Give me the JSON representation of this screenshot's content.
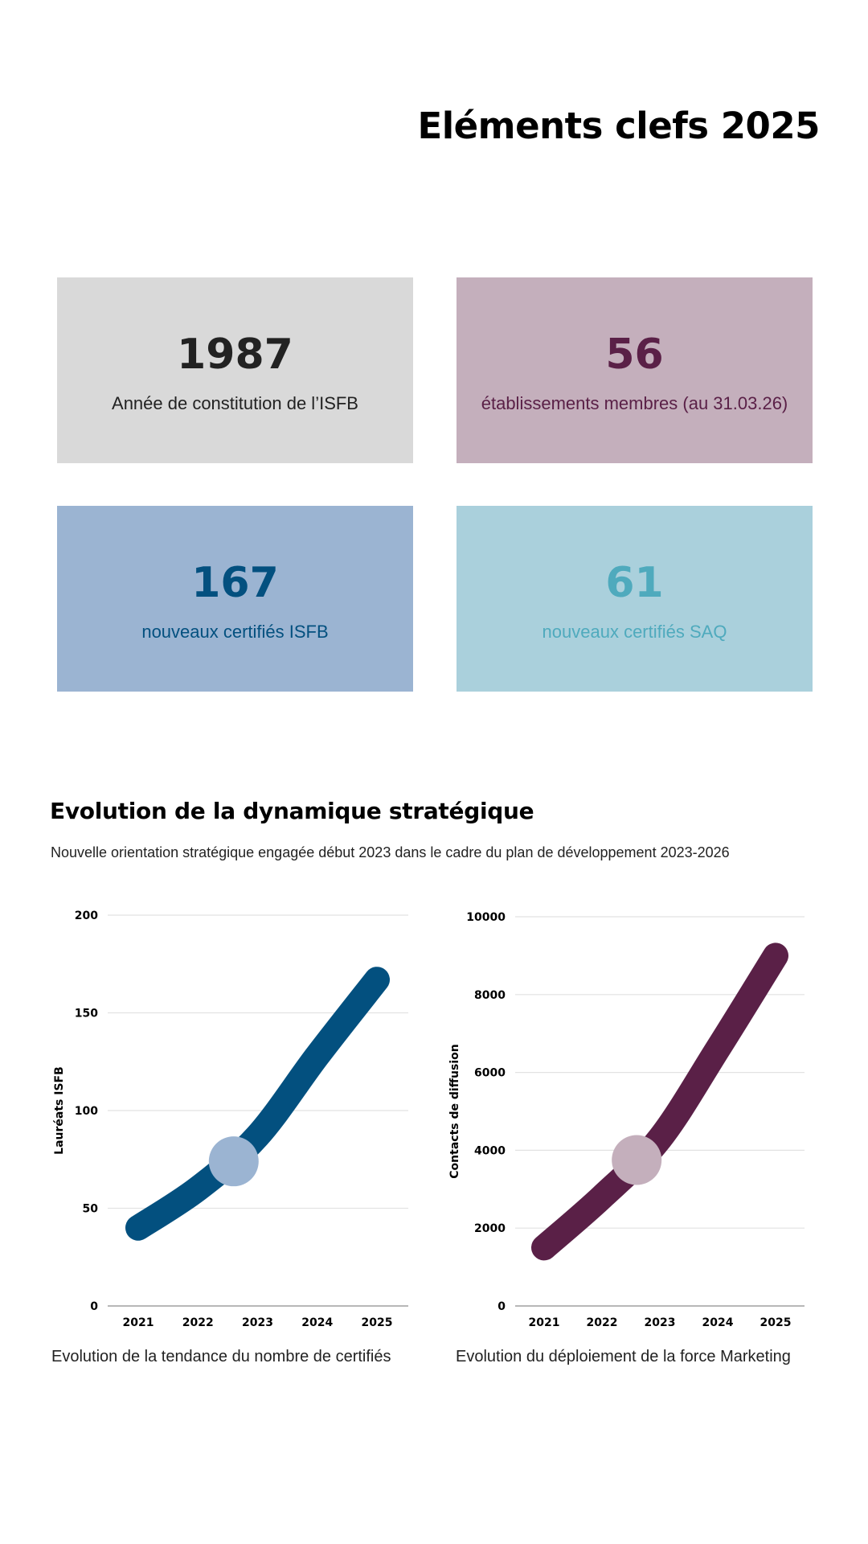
{
  "header": {
    "title": "Eléments clefs 2025"
  },
  "cards": [
    {
      "value": "1987",
      "label": "Année de constitution de l’ISFB",
      "bg": "#d9d9d9",
      "fg": "#222222"
    },
    {
      "value": "56",
      "label": "établissements membres (au 31.03.26)",
      "bg": "#c4afbc",
      "fg": "#5a2047"
    },
    {
      "value": "167",
      "label": "nouveaux certifiés ISFB",
      "bg": "#9bb4d2",
      "fg": "#03507f"
    },
    {
      "value": "61",
      "label": "nouveaux certifiés SAQ",
      "bg": "#aad0dc",
      "fg": "#4faabd"
    }
  ],
  "section": {
    "title": "Evolution de la dynamique stratégique",
    "subtitle": "Nouvelle orientation stratégique engagée début 2023 dans le cadre du plan de développement 2023-2026"
  },
  "chart_data": [
    {
      "type": "line",
      "title": "Evolution de la tendance du nombre de certifiés",
      "xlabel": "",
      "ylabel": "Lauréats ISFB",
      "categories": [
        "2021",
        "2022",
        "2023",
        "2024",
        "2025"
      ],
      "values": [
        40,
        60,
        87,
        128,
        167
      ],
      "ylim": [
        0,
        200
      ],
      "yticks": [
        0,
        50,
        100,
        150,
        200
      ],
      "grid": true,
      "line_color": "#03507f",
      "highlight": {
        "x": 2022.6,
        "y": 74,
        "color": "#9bb4d2"
      }
    },
    {
      "type": "line",
      "title": "Evolution du déploiement de la force Marketing",
      "xlabel": "",
      "ylabel": "Contacts de diffusion",
      "categories": [
        "2021",
        "2022",
        "2023",
        "2024",
        "2025"
      ],
      "values": [
        1500,
        2800,
        4300,
        6600,
        9000
      ],
      "ylim": [
        0,
        10000
      ],
      "yticks": [
        0,
        2000,
        4000,
        6000,
        8000,
        10000
      ],
      "grid": true,
      "line_color": "#5a2047",
      "highlight": {
        "x": 2022.6,
        "y": 3750,
        "color": "#c4afbc"
      }
    }
  ]
}
